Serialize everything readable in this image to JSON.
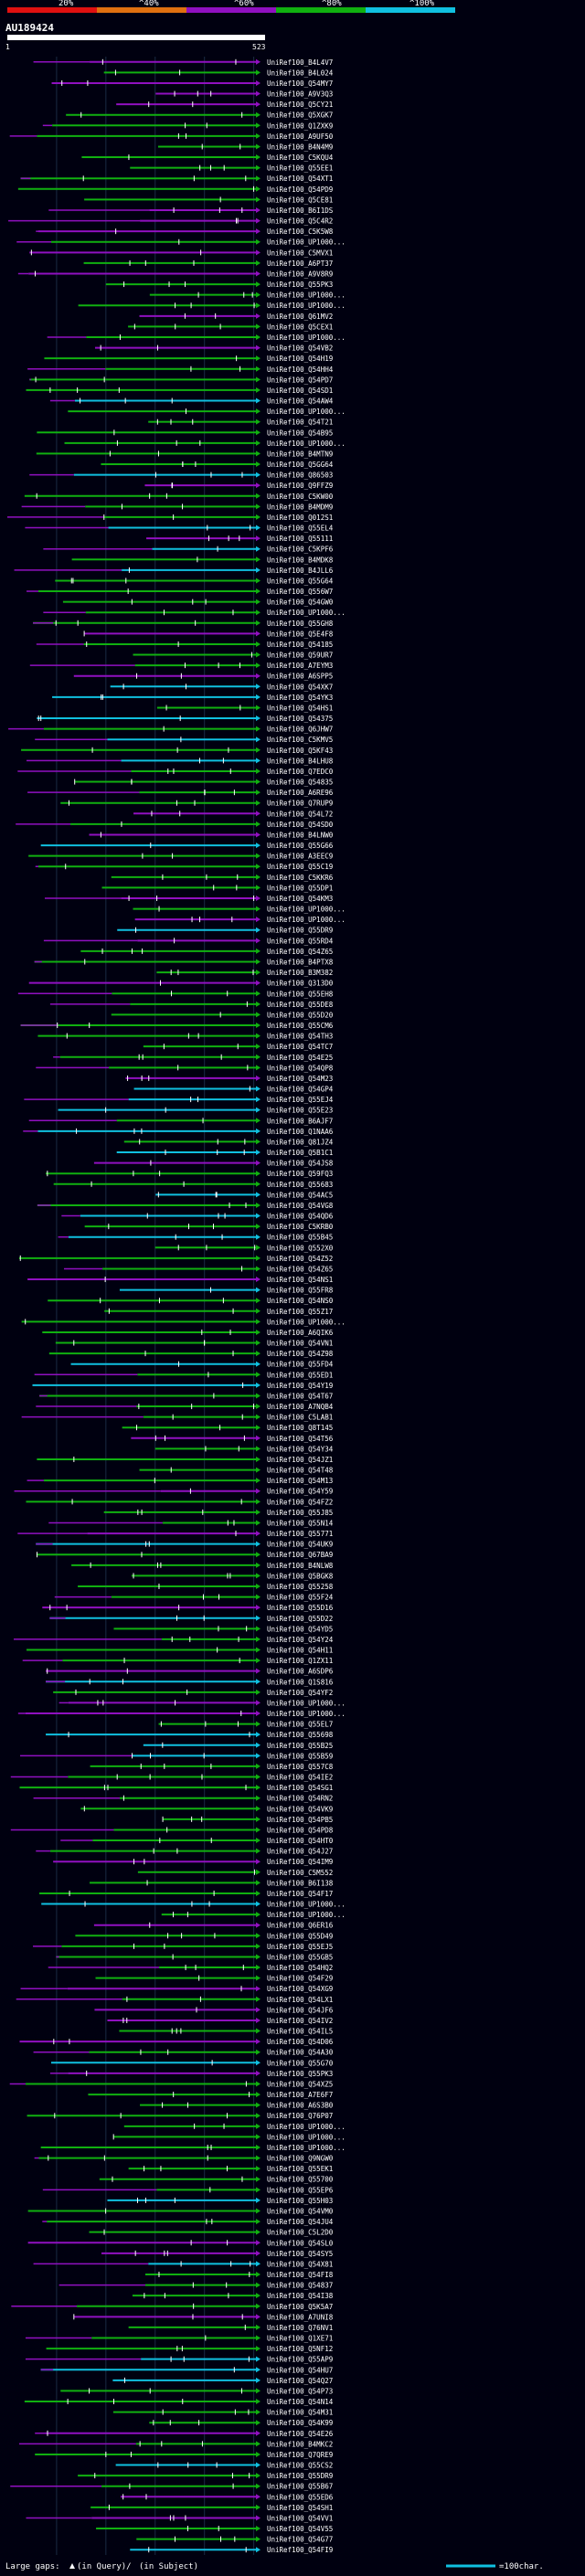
{
  "chart_data": {
    "type": "alignment-overview",
    "title": "AU189424",
    "query_start_label": "1",
    "query_end_label": "523",
    "query_length": 523,
    "scale_labels": [
      "20%",
      "^40%",
      "^60%",
      "^80%",
      "^100%"
    ],
    "identity_colors": [
      "#e01010",
      "#e07010",
      "#9010c0",
      "#10b010",
      "#10c0e0"
    ],
    "footer": {
      "large_gaps_label": "Large gaps:",
      "in_query_label": "(in Query)/",
      "in_subject_label": "(in Subject)",
      "scale_label": "=100char."
    },
    "hits": [
      "UniRef100_B4L4V7",
      "UniRef100_B4L024",
      "UniRef100_Q54MY7",
      "UniRef100_A9V3Q3",
      "UniRef100_Q5CY21",
      "UniRef100_Q5XGK7",
      "UniRef100_Q1ZXK9",
      "UniRef100_A9UF50",
      "UniRef100_B4N4M9",
      "UniRef100_C5KQU4",
      "UniRef100_Q55EE1",
      "UniRef100_Q54XT1",
      "UniRef100_Q54PD9",
      "UniRef100_Q5CE81",
      "UniRef100_B6I1DS",
      "UniRef100_Q5C4R2",
      "UniRef100_C5K5W8",
      "UniRef100_UP1000...",
      "UniRef100_C5MVX1",
      "UniRef100_A6PT37",
      "UniRef100_A9V8R9",
      "UniRef100_Q55PK3",
      "UniRef100_UP1000...",
      "UniRef100_UP1000...",
      "UniRef100_Q61MV2",
      "UniRef100_Q5CEX1",
      "UniRef100_UP1000...",
      "UniRef100_Q54VB2",
      "UniRef100_Q54H19",
      "UniRef100_Q54HH4",
      "UniRef100_Q54PD7",
      "UniRef100_Q54SD1",
      "UniRef100_Q54AW4",
      "UniRef100_UP1000...",
      "UniRef100_Q54T21",
      "UniRef100_Q54B95",
      "UniRef100_UP1000...",
      "UniRef100_B4MTN9",
      "UniRef100_Q5GG64",
      "UniRef100_Q86503",
      "UniRef100_Q9FFZ9",
      "UniRef100_C5KW00",
      "UniRef100_B4MDM9",
      "UniRef100_Q012S1",
      "UniRef100_Q55EL4",
      "UniRef100_Q55111",
      "UniRef100_C5KPF6",
      "UniRef100_B4MDK8",
      "UniRef100_B4JLL6",
      "UniRef100_Q55G64",
      "UniRef100_Q556W7",
      "UniRef100_Q54GW0",
      "UniRef100_UP1000...",
      "UniRef100_Q55GH8",
      "UniRef100_Q5E4F8",
      "UniRef100_Q54185",
      "UniRef100_Q59UR7",
      "UniRef100_A7EYM3",
      "UniRef100_A6SPP5",
      "UniRef100_Q54XK7",
      "UniRef100_Q54YK3",
      "UniRef100_Q54HS1",
      "UniRef100_Q54375",
      "UniRef100_Q6JHW7",
      "UniRef100_C5KMV5",
      "UniRef100_Q5KF43",
      "UniRef100_B4LHU8",
      "UniRef100_Q7EDC0",
      "UniRef100_Q54835",
      "UniRef100_A6RE96",
      "UniRef100_Q7RUP9",
      "UniRef100_Q54L72",
      "UniRef100_Q54SD0",
      "UniRef100_B4LNW0",
      "UniRef100_Q55G66",
      "UniRef100_A3EEC9",
      "UniRef100_Q55C19",
      "UniRef100_C5KKR6",
      "UniRef100_Q55DP1",
      "UniRef100_Q54KM3",
      "UniRef100_UP1000...",
      "UniRef100_UP1000...",
      "UniRef100_Q55DR9",
      "UniRef100_Q55RD4",
      "UniRef100_Q54Z65",
      "UniRef100_B4PTX8",
      "UniRef100_B3M382",
      "UniRef100_Q313D0",
      "UniRef100_Q55EH8",
      "UniRef100_Q55DE8",
      "UniRef100_Q55D20",
      "UniRef100_Q55CM6",
      "UniRef100_Q54TH3",
      "UniRef100_Q54TC7",
      "UniRef100_Q54E25",
      "UniRef100_Q54QP8",
      "UniRef100_Q54M23",
      "UniRef100_Q54GP4",
      "UniRef100_Q55EJ4",
      "UniRef100_Q55E23",
      "UniRef100_B6AJF7",
      "UniRef100_Q1NAA6",
      "UniRef100_Q81JZ4",
      "UniRef100_Q5B1C1",
      "UniRef100_Q54JS8",
      "UniRef100_Q59FQ3",
      "UniRef100_Q55683",
      "UniRef100_Q54AC5",
      "UniRef100_Q54VG8",
      "UniRef100_Q54QD6",
      "UniRef100_C5KRB0",
      "UniRef100_Q55B45",
      "UniRef100_Q552X0",
      "UniRef100_Q54Z52",
      "UniRef100_Q54Z65",
      "UniRef100_Q54NS1",
      "UniRef100_Q55FR8",
      "UniRef100_Q54NS0",
      "UniRef100_Q55Z17",
      "UniRef100_UP1000...",
      "UniRef100_A6QIK6",
      "UniRef100_Q54VN1",
      "UniRef100_Q54Z98",
      "UniRef100_Q55FD4",
      "UniRef100_Q55ED1",
      "UniRef100_Q54Y19",
      "UniRef100_Q54T67",
      "UniRef100_A7NQB4",
      "UniRef100_C5LAB1",
      "UniRef100_Q8T145",
      "UniRef100_Q54T56",
      "UniRef100_Q54Y34",
      "UniRef100_Q54JZ1",
      "UniRef100_Q54T48",
      "UniRef100_Q54M13",
      "UniRef100_Q54Y59",
      "UniRef100_Q54FZ2",
      "UniRef100_Q55J85",
      "UniRef100_Q55N14",
      "UniRef100_Q55771",
      "UniRef100_Q54UK9",
      "UniRef100_Q67BA9",
      "UniRef100_B4NLW8",
      "UniRef100_Q5BGK8",
      "UniRef100_Q55258",
      "UniRef100_Q55F24",
      "UniRef100_Q55D16",
      "UniRef100_Q55D22",
      "UniRef100_Q54YD5",
      "UniRef100_Q54Y24",
      "UniRef100_Q54H11",
      "UniRef100_Q1ZX11",
      "UniRef100_A6SDP6",
      "UniRef100_Q1S816",
      "UniRef100_Q54YF2",
      "UniRef100_UP1000...",
      "UniRef100_UP1000...",
      "UniRef100_Q55EL7",
      "UniRef100_Q55698",
      "UniRef100_Q55B25",
      "UniRef100_Q55B59",
      "UniRef100_Q557C8",
      "UniRef100_Q54IE2",
      "UniRef100_Q54SG1",
      "UniRef100_Q54RN2",
      "UniRef100_Q54VK9",
      "UniRef100_Q54PB5",
      "UniRef100_Q54PD8",
      "UniRef100_Q54HT0",
      "UniRef100_Q54J27",
      "UniRef100_Q54IM9",
      "UniRef100_C5M552",
      "UniRef100_B6I138",
      "UniRef100_Q54F17",
      "UniRef100_UP1000...",
      "UniRef100_UP1000...",
      "UniRef100_Q6ER16",
      "UniRef100_Q55D49",
      "UniRef100_Q55EJ5",
      "UniRef100_Q55GB5",
      "UniRef100_Q54HQ2",
      "UniRef100_Q54F29",
      "UniRef100_Q54XG9",
      "UniRef100_Q54LX1",
      "UniRef100_Q54JF6",
      "UniRef100_Q54IV2",
      "UniRef100_Q54IL5",
      "UniRef100_Q54D06",
      "UniRef100_Q54A30",
      "UniRef100_Q55G70",
      "UniRef100_Q55PK3",
      "UniRef100_Q54XZ5",
      "UniRef100_A7E6F7",
      "UniRef100_A6S3B0",
      "UniRef100_Q76P07",
      "UniRef100_UP1000...",
      "UniRef100_UP1000...",
      "UniRef100_UP1000...",
      "UniRef100_Q9NGW0",
      "UniRef100_Q55EK1",
      "UniRef100_Q55700",
      "UniRef100_Q55EP6",
      "UniRef100_Q55H03",
      "UniRef100_Q54VM0",
      "UniRef100_Q54JU4",
      "UniRef100_C5L2D0",
      "UniRef100_Q54SL0",
      "UniRef100_Q54SY5",
      "UniRef100_Q54X81",
      "UniRef100_Q54FI8",
      "UniRef100_Q54837",
      "UniRef100_Q54I38",
      "UniRef100_Q5K5A7",
      "UniRef100_A7UNI8",
      "UniRef100_Q76NV1",
      "UniRef100_Q1XE71",
      "UniRef100_Q5NF12",
      "UniRef100_Q55AP9",
      "UniRef100_Q54HU7",
      "UniRef100_Q54Q27",
      "UniRef100_Q54P73",
      "UniRef100_Q54N14",
      "UniRef100_Q54M31",
      "UniRef100_Q54K99",
      "UniRef100_Q54E26",
      "UniRef100_B4MKC2",
      "UniRef100_Q7QRE9",
      "UniRef100_Q55CS2",
      "UniRef100_Q55DR9",
      "UniRef100_Q55B67",
      "UniRef100_Q55ED6",
      "UniRef100_Q54SH1",
      "UniRef100_Q54VV1",
      "UniRef100_Q54V55",
      "UniRef100_Q54G77",
      "UniRef100_Q54FI9"
    ]
  }
}
